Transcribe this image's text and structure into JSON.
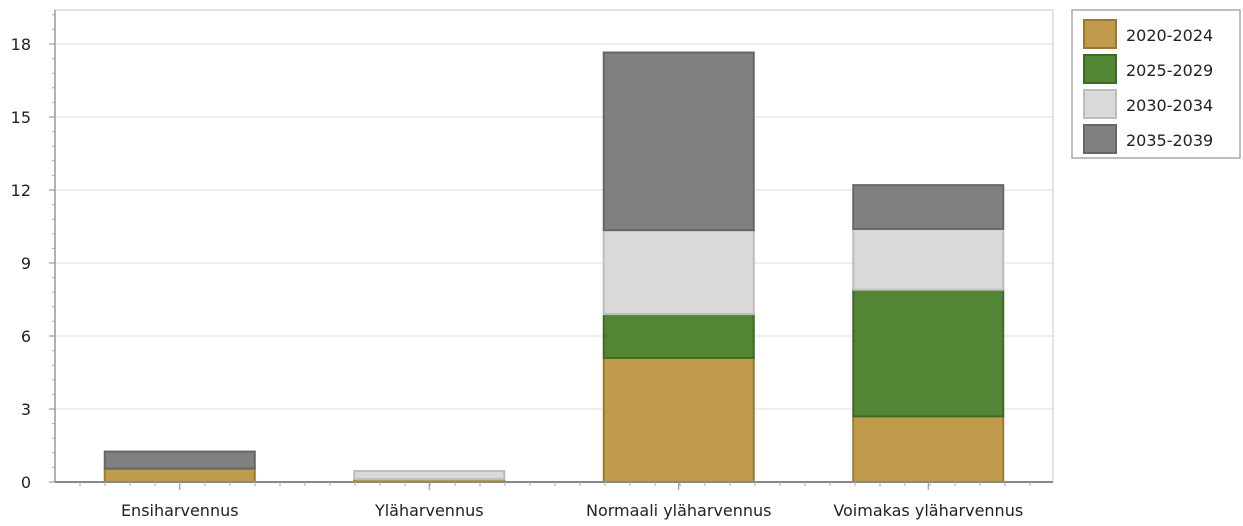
{
  "chart_data": {
    "type": "bar",
    "stacked": true,
    "categories": [
      "Ensiharvennus",
      "Yläharvennus",
      "Normaali yläharvennus",
      "Voimakas yläharvennus"
    ],
    "series": [
      {
        "name": "2020-2024",
        "color": "#bf9b4b",
        "values": [
          0.55,
          0.12,
          5.1,
          2.7
        ]
      },
      {
        "name": "2025-2029",
        "color": "#528534",
        "values": [
          0.0,
          0.0,
          1.8,
          5.2
        ]
      },
      {
        "name": "2030-2034",
        "color": "#d9d9d9",
        "values": [
          0.0,
          0.33,
          3.45,
          2.5
        ]
      },
      {
        "name": "2035-2039",
        "color": "#808080",
        "values": [
          0.7,
          0.0,
          7.3,
          1.8
        ]
      }
    ],
    "yticks": [
      0,
      3,
      6,
      9,
      12,
      15,
      18
    ],
    "ylim": [
      0,
      19.5
    ],
    "grid": true,
    "legend_position": "top-right",
    "title": "",
    "xlabel": "",
    "ylabel": ""
  }
}
